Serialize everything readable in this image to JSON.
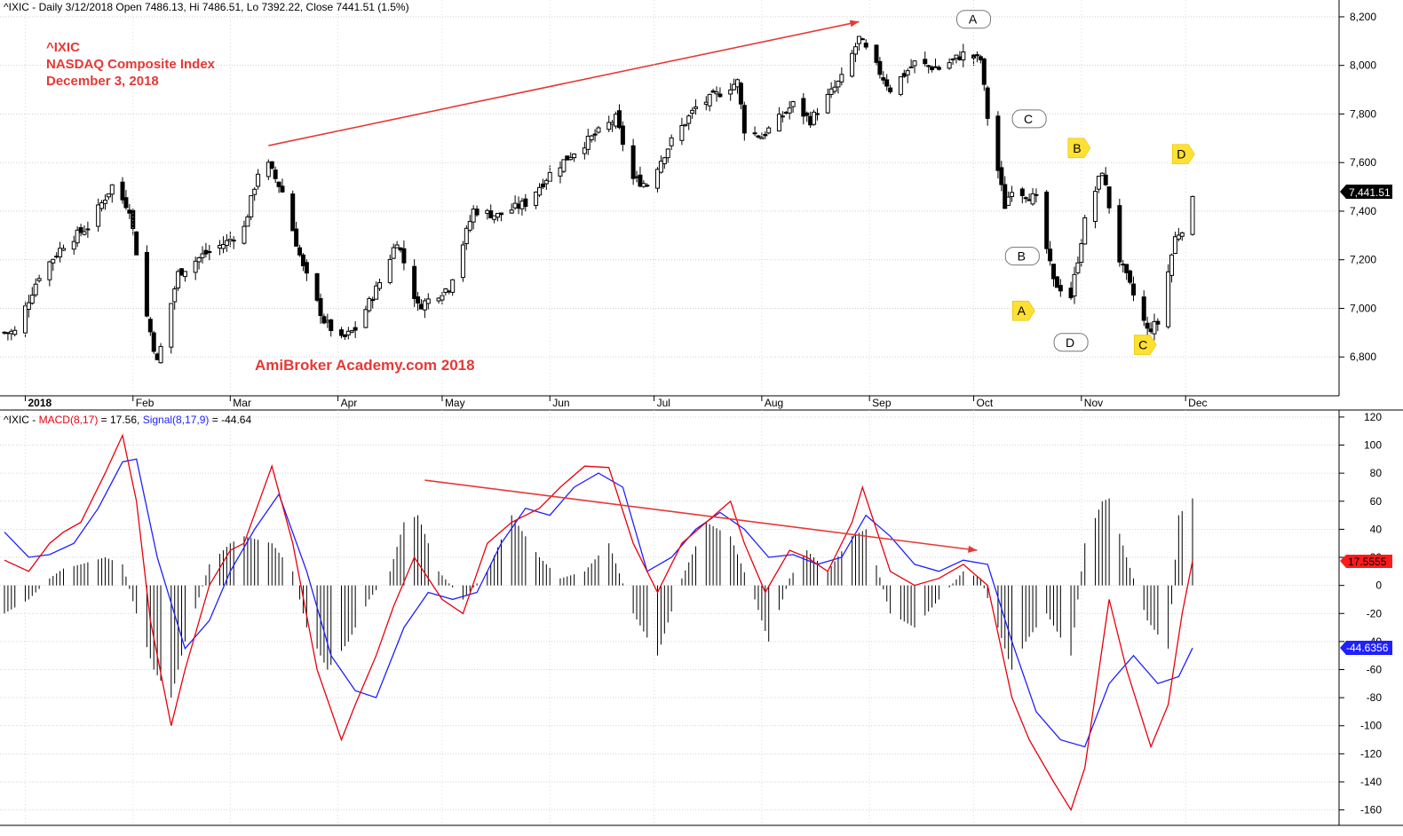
{
  "price_panel": {
    "header": "^IXIC - Daily 3/12/2018 Open 7486.13, Hi 7486.51, Lo 7392.22, Close 7441.51 (1.5%)",
    "annotation_lines": [
      "^IXIC",
      "NASDAQ Composite Index",
      "December 3, 2018"
    ],
    "watermark": "AmiBroker Academy.com  2018",
    "last_price_label": "7,441.51"
  },
  "macd_panel": {
    "header_prefix": "^IXIC - ",
    "header_macd": "MACD(8,17)",
    "header_macd_value": " = 17.56, ",
    "header_signal": "Signal(8,17,9)",
    "header_signal_value": " = -44.64",
    "macd_label": "17.5555",
    "signal_label": "-44.6356"
  },
  "colors": {
    "candles": "#000000",
    "trend_arrow": "#e53935",
    "macd_line": "#e8000b",
    "signal_line": "#1f1fff",
    "histogram": "#000000",
    "text_annotation": "#e53935",
    "callout_white": "#ffffff",
    "callout_yellow": "#ffe033"
  },
  "chart_data": [
    {
      "type": "candlestick",
      "title": "^IXIC - Daily 3/12/2018 Open 7486.13, Hi 7486.51, Lo 7392.22, Close 7441.51 (1.5%)",
      "y_axis_ticks": [
        "8,200",
        "8,000",
        "7,800",
        "7,600",
        "7,400",
        "7,200",
        "7,000",
        "6,800"
      ],
      "ylim": [
        6640,
        8240
      ],
      "x_tick_labels": [
        "2018",
        "Feb",
        "Mar",
        "Apr",
        "May",
        "Jun",
        "Jul",
        "Aug",
        "Sep",
        "Oct",
        "Nov",
        "Dec"
      ],
      "last_close": 7441.51,
      "close_anchor_points": [
        [
          "2017-12-26",
          6900
        ],
        [
          "2017-12-29",
          6903
        ],
        [
          "2018-01-05",
          7136
        ],
        [
          "2018-01-12",
          7261
        ],
        [
          "2018-01-19",
          7336
        ],
        [
          "2018-01-26",
          7505
        ],
        [
          "2018-01-31",
          7411
        ],
        [
          "2018-02-05",
          6967
        ],
        [
          "2018-02-08",
          6777
        ],
        [
          "2018-02-14",
          7143
        ],
        [
          "2018-02-21",
          7218
        ],
        [
          "2018-02-28",
          7273
        ],
        [
          "2018-03-05",
          7331
        ],
        [
          "2018-03-09",
          7560
        ],
        [
          "2018-03-12",
          7588
        ],
        [
          "2018-03-16",
          7481
        ],
        [
          "2018-03-22",
          7166
        ],
        [
          "2018-03-28",
          6949
        ],
        [
          "2018-04-02",
          6870
        ],
        [
          "2018-04-06",
          6915
        ],
        [
          "2018-04-13",
          7107
        ],
        [
          "2018-04-18",
          7281
        ],
        [
          "2018-04-24",
          7008
        ],
        [
          "2018-05-03",
          7088
        ],
        [
          "2018-05-10",
          7404
        ],
        [
          "2018-05-17",
          7382
        ],
        [
          "2018-05-25",
          7433
        ],
        [
          "2018-06-01",
          7554
        ],
        [
          "2018-06-08",
          7645
        ],
        [
          "2018-06-20",
          7781
        ],
        [
          "2018-06-25",
          7532
        ],
        [
          "2018-06-29",
          7510
        ],
        [
          "2018-07-06",
          7688
        ],
        [
          "2018-07-13",
          7826
        ],
        [
          "2018-07-25",
          7932
        ],
        [
          "2018-07-27",
          7737
        ],
        [
          "2018-08-01",
          7707
        ],
        [
          "2018-08-10",
          7839
        ],
        [
          "2018-08-15",
          7774
        ],
        [
          "2018-08-24",
          7946
        ],
        [
          "2018-08-29",
          8110
        ],
        [
          "2018-09-07",
          7902
        ],
        [
          "2018-09-14",
          8010
        ],
        [
          "2018-09-21",
          7987
        ],
        [
          "2018-09-28",
          8046
        ],
        [
          "2018-10-03",
          8025
        ],
        [
          "2018-10-05",
          7788
        ],
        [
          "2018-10-10",
          7422
        ],
        [
          "2018-10-12",
          7497
        ],
        [
          "2018-10-19",
          7449
        ],
        [
          "2018-10-24",
          7108
        ],
        [
          "2018-10-29",
          7050
        ],
        [
          "2018-11-02",
          7357
        ],
        [
          "2018-11-07",
          7570
        ],
        [
          "2018-11-12",
          7200
        ],
        [
          "2018-11-20",
          6909
        ],
        [
          "2018-11-23",
          6939
        ],
        [
          "2018-11-28",
          7291
        ],
        [
          "2018-11-30",
          7330
        ],
        [
          "2018-12-03",
          7441.51
        ]
      ],
      "trend_line": {
        "from": [
          "2018-03-12",
          7670
        ],
        "to": [
          "2018-08-29",
          8180
        ]
      },
      "wave_labels": [
        {
          "label": "A",
          "style": "white",
          "date": "2018-10-01",
          "price": 8190
        },
        {
          "label": "B",
          "style": "white",
          "date": "2018-10-15",
          "price": 7215
        },
        {
          "label": "C",
          "style": "white",
          "date": "2018-10-17",
          "price": 7780
        },
        {
          "label": "D",
          "style": "white",
          "date": "2018-10-29",
          "price": 6860
        },
        {
          "label": "A",
          "style": "yellow",
          "date": "2018-10-15",
          "price": 6990
        },
        {
          "label": "B",
          "style": "yellow",
          "date": "2018-10-31",
          "price": 7660
        },
        {
          "label": "C",
          "style": "yellow",
          "date": "2018-11-19",
          "price": 6850
        },
        {
          "label": "D",
          "style": "yellow",
          "date": "2018-11-30",
          "price": 7635
        }
      ]
    },
    {
      "type": "line",
      "title": "^IXIC - MACD(8,17) = 17.56, Signal(8,17,9) = -44.64",
      "y_axis_ticks": [
        120,
        100,
        80,
        60,
        40,
        20,
        0,
        -20,
        -40,
        -60,
        -80,
        -100,
        -120,
        -140,
        -160
      ],
      "ylim": [
        -171,
        125
      ],
      "series": [
        {
          "name": "MACD(8,17)",
          "color": "#e8000b",
          "points": [
            [
              "2017-12-26",
              18
            ],
            [
              "2018-01-02",
              10
            ],
            [
              "2018-01-08",
              30
            ],
            [
              "2018-01-12",
              38
            ],
            [
              "2018-01-17",
              45
            ],
            [
              "2018-01-24",
              80
            ],
            [
              "2018-01-29",
              107
            ],
            [
              "2018-02-02",
              60
            ],
            [
              "2018-02-06",
              -25
            ],
            [
              "2018-02-12",
              -100
            ],
            [
              "2018-02-16",
              -60
            ],
            [
              "2018-02-23",
              0
            ],
            [
              "2018-03-01",
              25
            ],
            [
              "2018-03-05",
              30
            ],
            [
              "2018-03-13",
              85
            ],
            [
              "2018-03-19",
              30
            ],
            [
              "2018-03-26",
              -60
            ],
            [
              "2018-04-02",
              -110
            ],
            [
              "2018-04-06",
              -85
            ],
            [
              "2018-04-12",
              -50
            ],
            [
              "2018-04-17",
              -15
            ],
            [
              "2018-04-23",
              20
            ],
            [
              "2018-05-01",
              -10
            ],
            [
              "2018-05-07",
              -20
            ],
            [
              "2018-05-14",
              30
            ],
            [
              "2018-05-21",
              45
            ],
            [
              "2018-05-29",
              55
            ],
            [
              "2018-06-04",
              70
            ],
            [
              "2018-06-11",
              85
            ],
            [
              "2018-06-18",
              84
            ],
            [
              "2018-06-25",
              30
            ],
            [
              "2018-07-02",
              -5
            ],
            [
              "2018-07-09",
              30
            ],
            [
              "2018-07-16",
              45
            ],
            [
              "2018-07-23",
              60
            ],
            [
              "2018-07-27",
              30
            ],
            [
              "2018-08-02",
              -5
            ],
            [
              "2018-08-09",
              25
            ],
            [
              "2018-08-14",
              20
            ],
            [
              "2018-08-20",
              10
            ],
            [
              "2018-08-27",
              45
            ],
            [
              "2018-08-30",
              70
            ],
            [
              "2018-09-07",
              10
            ],
            [
              "2018-09-14",
              0
            ],
            [
              "2018-09-21",
              5
            ],
            [
              "2018-09-28",
              15
            ],
            [
              "2018-10-05",
              0
            ],
            [
              "2018-10-12",
              -80
            ],
            [
              "2018-10-17",
              -110
            ],
            [
              "2018-10-24",
              -140
            ],
            [
              "2018-10-29",
              -160
            ],
            [
              "2018-11-02",
              -130
            ],
            [
              "2018-11-09",
              -10
            ],
            [
              "2018-11-14",
              -60
            ],
            [
              "2018-11-21",
              -115
            ],
            [
              "2018-11-26",
              -85
            ],
            [
              "2018-11-30",
              -20
            ],
            [
              "2018-12-03",
              17.56
            ]
          ]
        },
        {
          "name": "Signal(8,17,9)",
          "color": "#1f1fff",
          "points": [
            [
              "2017-12-26",
              38
            ],
            [
              "2018-01-02",
              20
            ],
            [
              "2018-01-08",
              22
            ],
            [
              "2018-01-15",
              30
            ],
            [
              "2018-01-22",
              55
            ],
            [
              "2018-01-29",
              88
            ],
            [
              "2018-02-02",
              90
            ],
            [
              "2018-02-08",
              20
            ],
            [
              "2018-02-16",
              -45
            ],
            [
              "2018-02-23",
              -25
            ],
            [
              "2018-03-01",
              10
            ],
            [
              "2018-03-08",
              40
            ],
            [
              "2018-03-15",
              65
            ],
            [
              "2018-03-23",
              10
            ],
            [
              "2018-03-30",
              -50
            ],
            [
              "2018-04-06",
              -75
            ],
            [
              "2018-04-12",
              -80
            ],
            [
              "2018-04-20",
              -30
            ],
            [
              "2018-04-27",
              -5
            ],
            [
              "2018-05-04",
              -10
            ],
            [
              "2018-05-11",
              -5
            ],
            [
              "2018-05-18",
              30
            ],
            [
              "2018-05-25",
              55
            ],
            [
              "2018-06-01",
              50
            ],
            [
              "2018-06-08",
              70
            ],
            [
              "2018-06-15",
              80
            ],
            [
              "2018-06-22",
              70
            ],
            [
              "2018-06-29",
              10
            ],
            [
              "2018-07-06",
              20
            ],
            [
              "2018-07-13",
              40
            ],
            [
              "2018-07-20",
              52
            ],
            [
              "2018-07-27",
              40
            ],
            [
              "2018-08-03",
              20
            ],
            [
              "2018-08-10",
              22
            ],
            [
              "2018-08-17",
              15
            ],
            [
              "2018-08-24",
              20
            ],
            [
              "2018-08-31",
              50
            ],
            [
              "2018-09-07",
              35
            ],
            [
              "2018-09-14",
              15
            ],
            [
              "2018-09-21",
              10
            ],
            [
              "2018-09-28",
              18
            ],
            [
              "2018-10-05",
              15
            ],
            [
              "2018-10-12",
              -40
            ],
            [
              "2018-10-19",
              -90
            ],
            [
              "2018-10-26",
              -110
            ],
            [
              "2018-11-02",
              -115
            ],
            [
              "2018-11-09",
              -70
            ],
            [
              "2018-11-16",
              -50
            ],
            [
              "2018-11-23",
              -70
            ],
            [
              "2018-11-29",
              -65
            ],
            [
              "2018-12-03",
              -44.64
            ]
          ]
        },
        {
          "name": "Histogram",
          "color": "#000000",
          "type": "bar",
          "points": [
            [
              "2017-12-26",
              -20
            ],
            [
              "2018-01-02",
              -10
            ],
            [
              "2018-01-08",
              5
            ],
            [
              "2018-01-12",
              12
            ],
            [
              "2018-01-17",
              15
            ],
            [
              "2018-01-24",
              20
            ],
            [
              "2018-01-29",
              15
            ],
            [
              "2018-02-02",
              -20
            ],
            [
              "2018-02-07",
              -60
            ],
            [
              "2018-02-12",
              -80
            ],
            [
              "2018-02-16",
              -40
            ],
            [
              "2018-02-23",
              15
            ],
            [
              "2018-03-01",
              30
            ],
            [
              "2018-03-05",
              35
            ],
            [
              "2018-03-13",
              30
            ],
            [
              "2018-03-19",
              10
            ],
            [
              "2018-03-23",
              -30
            ],
            [
              "2018-03-29",
              -60
            ],
            [
              "2018-04-04",
              -40
            ],
            [
              "2018-04-10",
              -10
            ],
            [
              "2018-04-16",
              10
            ],
            [
              "2018-04-20",
              45
            ],
            [
              "2018-04-24",
              50
            ],
            [
              "2018-04-30",
              10
            ],
            [
              "2018-05-07",
              -10
            ],
            [
              "2018-05-14",
              10
            ],
            [
              "2018-05-21",
              50
            ],
            [
              "2018-05-29",
              20
            ],
            [
              "2018-06-04",
              5
            ],
            [
              "2018-06-11",
              10
            ],
            [
              "2018-06-18",
              30
            ],
            [
              "2018-06-25",
              -20
            ],
            [
              "2018-07-02",
              -50
            ],
            [
              "2018-07-09",
              5
            ],
            [
              "2018-07-16",
              45
            ],
            [
              "2018-07-23",
              35
            ],
            [
              "2018-07-30",
              -10
            ],
            [
              "2018-08-03",
              -40
            ],
            [
              "2018-08-09",
              5
            ],
            [
              "2018-08-14",
              25
            ],
            [
              "2018-08-20",
              10
            ],
            [
              "2018-08-27",
              35
            ],
            [
              "2018-08-31",
              40
            ],
            [
              "2018-09-07",
              -20
            ],
            [
              "2018-09-14",
              -30
            ],
            [
              "2018-09-21",
              -10
            ],
            [
              "2018-09-28",
              10
            ],
            [
              "2018-10-03",
              5
            ],
            [
              "2018-10-08",
              -30
            ],
            [
              "2018-10-12",
              -60
            ],
            [
              "2018-10-16",
              -40
            ],
            [
              "2018-10-22",
              -20
            ],
            [
              "2018-10-29",
              -50
            ],
            [
              "2018-11-02",
              30
            ],
            [
              "2018-11-07",
              60
            ],
            [
              "2018-11-09",
              62
            ],
            [
              "2018-11-14",
              20
            ],
            [
              "2018-11-20",
              -25
            ],
            [
              "2018-11-26",
              -45
            ],
            [
              "2018-11-29",
              50
            ],
            [
              "2018-12-03",
              62
            ]
          ]
        }
      ],
      "trend_line": {
        "from": [
          "2018-04-26",
          75
        ],
        "to": [
          "2018-10-02",
          25
        ]
      }
    }
  ]
}
